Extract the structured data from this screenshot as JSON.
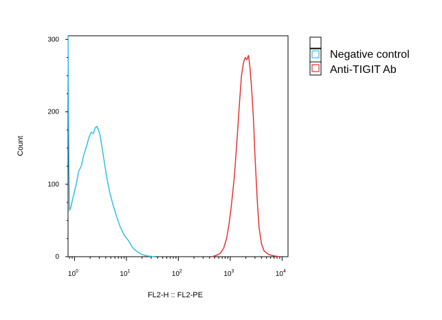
{
  "chart_data": {
    "type": "line",
    "title": "",
    "xlabel": "FL2-H :: FL2-PE",
    "ylabel": "Count",
    "xscale": "log",
    "xlim": [
      0.75,
      13000
    ],
    "ylim": [
      0,
      305
    ],
    "grid": false,
    "legend_position": "right",
    "y_ticks": [
      {
        "value": 0,
        "label": "0"
      },
      {
        "value": 100,
        "label": "100"
      },
      {
        "value": 200,
        "label": "200"
      },
      {
        "value": 300,
        "label": "300"
      }
    ],
    "x_ticks": [
      {
        "value": 1,
        "base": "10",
        "exp": "0"
      },
      {
        "value": 10,
        "base": "10",
        "exp": "1"
      },
      {
        "value": 100,
        "base": "10",
        "exp": "2"
      },
      {
        "value": 1000,
        "base": "10",
        "exp": "3"
      },
      {
        "value": 10000,
        "base": "10",
        "exp": "4"
      }
    ],
    "legend": {
      "blank_entry": true,
      "entries": [
        "Negative control",
        "Anti-TIGIT Ab"
      ]
    },
    "series": [
      {
        "name": "Negative control",
        "color": "#33bbe6",
        "points": [
          [
            0.75,
            305
          ],
          [
            0.78,
            120
          ],
          [
            0.8,
            64
          ],
          [
            0.85,
            68
          ],
          [
            0.92,
            80
          ],
          [
            1.0,
            90
          ],
          [
            1.1,
            103
          ],
          [
            1.2,
            118
          ],
          [
            1.35,
            125
          ],
          [
            1.5,
            140
          ],
          [
            1.7,
            152
          ],
          [
            1.9,
            165
          ],
          [
            2.1,
            172
          ],
          [
            2.3,
            170
          ],
          [
            2.5,
            178
          ],
          [
            2.7,
            180
          ],
          [
            2.9,
            175
          ],
          [
            3.1,
            168
          ],
          [
            3.4,
            150
          ],
          [
            3.8,
            128
          ],
          [
            4.2,
            108
          ],
          [
            4.8,
            88
          ],
          [
            5.5,
            72
          ],
          [
            6.5,
            55
          ],
          [
            7.5,
            42
          ],
          [
            9.0,
            30
          ],
          [
            11,
            22
          ],
          [
            13,
            13
          ],
          [
            16,
            7
          ],
          [
            20,
            3
          ],
          [
            25,
            1
          ],
          [
            35,
            0
          ]
        ]
      },
      {
        "name": "Anti-TIGIT Ab",
        "color": "#e83030",
        "points": [
          [
            450,
            0
          ],
          [
            550,
            2
          ],
          [
            650,
            5
          ],
          [
            750,
            12
          ],
          [
            850,
            25
          ],
          [
            950,
            45
          ],
          [
            1050,
            70
          ],
          [
            1200,
            110
          ],
          [
            1350,
            160
          ],
          [
            1500,
            210
          ],
          [
            1650,
            250
          ],
          [
            1800,
            268
          ],
          [
            1950,
            275
          ],
          [
            2100,
            272
          ],
          [
            2250,
            278
          ],
          [
            2400,
            262
          ],
          [
            2600,
            230
          ],
          [
            2800,
            190
          ],
          [
            3000,
            140
          ],
          [
            3300,
            80
          ],
          [
            3600,
            40
          ],
          [
            4000,
            18
          ],
          [
            4500,
            8
          ],
          [
            5500,
            3
          ],
          [
            7000,
            1
          ],
          [
            9000,
            0
          ]
        ]
      }
    ]
  }
}
